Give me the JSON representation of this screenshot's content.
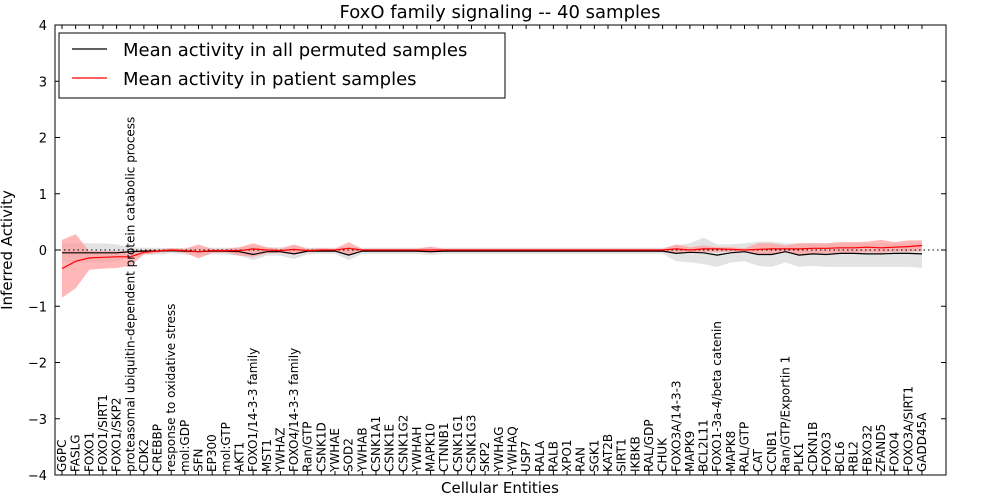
{
  "chart_data": {
    "type": "line",
    "title": "FoxO family signaling -- 40 samples",
    "xlabel": "Cellular Entities",
    "ylabel": "Inferred Activity",
    "ylim": [
      -4,
      4
    ],
    "yticks": [
      -4,
      -3,
      -2,
      -1,
      0,
      1,
      2,
      3,
      4
    ],
    "legend_position": "top-left",
    "colors": {
      "permuted": "#000000",
      "patient": "#ff0000",
      "permuted_band": "#cccccc",
      "patient_band": "#ff9999",
      "zero_line": "#000000"
    },
    "categories": [
      "G6PC",
      "FASLG",
      "FOXO1",
      "FOXO1/SIRT1",
      "FOXO1/SKP2",
      "proteasomal ubiquitin-dependent protein catabolic process",
      "CDK2",
      "CREBBP",
      "response to oxidative stress",
      "mol:GDP",
      "SFN",
      "EP300",
      "mol:GTP",
      "AKT1",
      "FOXO1/14-3-3 family",
      "MST1",
      "YWHAZ",
      "FOXO4/14-3-3 family",
      "Ran/GTP",
      "CSNK1D",
      "YWHAE",
      "SOD2",
      "YWHAB",
      "CSNK1A1",
      "CSNK1E",
      "CSNK1G2",
      "YWHAH",
      "MAPK10",
      "CTNNB1",
      "CSNK1G1",
      "CSNK1G3",
      "SKP2",
      "YWHAG",
      "YWHAQ",
      "USP7",
      "RALA",
      "RALB",
      "XPO1",
      "RAN",
      "SGK1",
      "KAT2B",
      "SIRT1",
      "IKBKB",
      "RAL/GDP",
      "CHUK",
      "FOXO3A/14-3-3",
      "MAPK9",
      "BCL2L11",
      "FOXO1-3a-4/beta catenin",
      "MAPK8",
      "RAL/GTP",
      "CAT",
      "CCNB1",
      "Ran/GTP/Exportin 1",
      "PLK1",
      "CDKN1B",
      "FOXO3",
      "BCL6",
      "RBL2",
      "FBXO32",
      "ZFAND5",
      "FOXO4",
      "FOXO3A/SIRT1",
      "GADD45A"
    ],
    "series": [
      {
        "name": "Mean activity in all permuted samples",
        "values": [
          -0.05,
          -0.05,
          -0.05,
          -0.05,
          -0.05,
          -0.03,
          -0.02,
          -0.02,
          -0.01,
          -0.02,
          -0.03,
          -0.02,
          -0.02,
          -0.03,
          -0.08,
          -0.03,
          -0.03,
          -0.07,
          -0.02,
          -0.02,
          -0.02,
          -0.09,
          -0.02,
          -0.02,
          -0.02,
          -0.02,
          -0.02,
          -0.03,
          -0.02,
          -0.02,
          -0.02,
          -0.02,
          -0.02,
          -0.02,
          -0.02,
          -0.02,
          -0.02,
          -0.02,
          -0.02,
          -0.02,
          -0.02,
          -0.02,
          -0.02,
          -0.02,
          -0.02,
          -0.06,
          -0.04,
          -0.05,
          -0.09,
          -0.05,
          -0.03,
          -0.08,
          -0.08,
          -0.03,
          -0.09,
          -0.07,
          -0.08,
          -0.06,
          -0.06,
          -0.07,
          -0.07,
          -0.06,
          -0.06,
          -0.07
        ],
        "band_upper": [
          0.12,
          0.12,
          0.12,
          0.12,
          0.1,
          0.05,
          0.04,
          0.04,
          0.03,
          0.04,
          0.05,
          0.04,
          0.04,
          0.05,
          0.07,
          0.05,
          0.05,
          0.07,
          0.04,
          0.04,
          0.04,
          0.06,
          0.04,
          0.04,
          0.04,
          0.04,
          0.04,
          0.05,
          0.04,
          0.04,
          0.04,
          0.04,
          0.04,
          0.04,
          0.04,
          0.04,
          0.04,
          0.04,
          0.04,
          0.04,
          0.04,
          0.04,
          0.04,
          0.04,
          0.04,
          0.08,
          0.12,
          0.22,
          0.1,
          0.1,
          0.12,
          0.15,
          0.15,
          0.12,
          0.12,
          0.12,
          0.12,
          0.12,
          0.12,
          0.12,
          0.12,
          0.12,
          0.12,
          0.12
        ],
        "band_lower": [
          -0.22,
          -0.22,
          -0.22,
          -0.22,
          -0.2,
          -0.12,
          -0.09,
          -0.08,
          -0.06,
          -0.08,
          -0.1,
          -0.08,
          -0.08,
          -0.1,
          -0.18,
          -0.1,
          -0.1,
          -0.16,
          -0.08,
          -0.07,
          -0.07,
          -0.18,
          -0.07,
          -0.07,
          -0.07,
          -0.07,
          -0.07,
          -0.09,
          -0.07,
          -0.07,
          -0.07,
          -0.07,
          -0.07,
          -0.07,
          -0.07,
          -0.07,
          -0.07,
          -0.07,
          -0.07,
          -0.07,
          -0.07,
          -0.07,
          -0.07,
          -0.07,
          -0.07,
          -0.2,
          -0.22,
          -0.25,
          -0.3,
          -0.22,
          -0.2,
          -0.28,
          -0.3,
          -0.22,
          -0.3,
          -0.28,
          -0.3,
          -0.3,
          -0.3,
          -0.3,
          -0.3,
          -0.3,
          -0.3,
          -0.32
        ]
      },
      {
        "name": "Mean activity in patient samples",
        "values": [
          -0.33,
          -0.2,
          -0.14,
          -0.13,
          -0.12,
          -0.12,
          -0.04,
          -0.02,
          0.0,
          -0.01,
          -0.03,
          -0.01,
          -0.01,
          -0.01,
          0.02,
          0.0,
          -0.01,
          0.01,
          -0.01,
          0.0,
          0.0,
          0.03,
          0.0,
          0.0,
          0.0,
          0.0,
          0.0,
          0.0,
          0.0,
          0.0,
          0.0,
          0.0,
          0.0,
          0.0,
          0.0,
          0.0,
          0.0,
          0.0,
          0.0,
          0.0,
          0.0,
          0.0,
          0.0,
          0.0,
          0.0,
          0.02,
          0.0,
          0.02,
          0.02,
          0.01,
          0.0,
          0.01,
          0.02,
          0.02,
          0.02,
          0.03,
          0.03,
          0.04,
          0.04,
          0.05,
          0.04,
          0.05,
          0.06,
          0.08
        ],
        "band_upper": [
          0.18,
          0.28,
          -0.02,
          -0.02,
          -0.02,
          -0.02,
          0.0,
          0.01,
          0.03,
          0.02,
          0.1,
          0.02,
          0.02,
          0.05,
          0.12,
          0.05,
          0.02,
          0.1,
          0.02,
          0.03,
          0.02,
          0.14,
          0.02,
          0.02,
          0.02,
          0.02,
          0.02,
          0.06,
          0.02,
          0.02,
          0.02,
          0.02,
          0.02,
          0.02,
          0.02,
          0.02,
          0.02,
          0.02,
          0.02,
          0.02,
          0.02,
          0.02,
          0.02,
          0.02,
          0.02,
          0.1,
          0.05,
          0.08,
          0.05,
          0.05,
          0.03,
          0.12,
          0.12,
          0.08,
          0.12,
          0.12,
          0.12,
          0.14,
          0.14,
          0.15,
          0.18,
          0.14,
          0.17,
          0.17
        ],
        "band_lower": [
          -0.85,
          -0.68,
          -0.35,
          -0.33,
          -0.32,
          -0.28,
          -0.08,
          -0.05,
          -0.03,
          -0.05,
          -0.15,
          -0.05,
          -0.05,
          -0.1,
          -0.12,
          -0.06,
          -0.05,
          -0.08,
          -0.04,
          -0.03,
          -0.03,
          -0.08,
          -0.03,
          -0.03,
          -0.03,
          -0.03,
          -0.03,
          -0.05,
          -0.03,
          -0.03,
          -0.03,
          -0.03,
          -0.03,
          -0.03,
          -0.03,
          -0.03,
          -0.03,
          -0.03,
          -0.03,
          -0.03,
          -0.03,
          -0.03,
          -0.03,
          -0.03,
          -0.03,
          -0.05,
          -0.05,
          -0.04,
          -0.04,
          -0.03,
          -0.03,
          -0.08,
          -0.08,
          -0.04,
          -0.08,
          -0.06,
          -0.06,
          -0.05,
          -0.05,
          -0.04,
          -0.05,
          -0.03,
          -0.03,
          -0.02
        ]
      }
    ]
  }
}
